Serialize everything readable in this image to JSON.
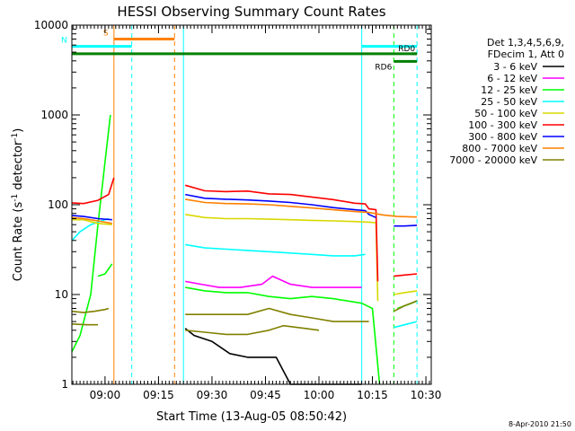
{
  "chart_data": {
    "type": "line",
    "title": "HESSI Observing Summary Count Rates",
    "xlabel": "Start Time (13-Aug-05 08:50:42)",
    "ylabel": "Count Rate (s",
    "ylabel_sup": "-1",
    "ylabel_mid": " detector",
    "ylabel_end": ")",
    "y_scale": "log",
    "ylim": [
      1,
      10000
    ],
    "xlim": [
      "08:50:42",
      "10:31:30"
    ],
    "x_ticks": [
      "09:00",
      "09:15",
      "09:30",
      "09:45",
      "10:00",
      "10:15",
      "10:30"
    ],
    "y_ticks": [
      "1",
      "10",
      "100",
      "1000",
      "10000"
    ],
    "footer_date": "8-Apr-2010 21:50",
    "legend_title": [
      "Det 1,3,4,5,6,9,",
      "FDecim 1, Att 0"
    ],
    "legend_placement": "right",
    "series": [
      {
        "name": "3 - 6 keV",
        "color": "#000000",
        "segments": [
          [
            [
              "09:22:30",
              4.2
            ],
            [
              "09:25",
              3.5
            ],
            [
              "09:30",
              3.0
            ],
            [
              "09:35",
              2.2
            ],
            [
              "09:40",
              2.0
            ],
            [
              "09:45",
              2.0
            ],
            [
              "09:48",
              2.0
            ],
            [
              "09:52",
              1.0
            ],
            [
              "10:00",
              1.0
            ],
            [
              "10:05",
              1.0
            ],
            [
              "10:12",
              1.0
            ]
          ]
        ]
      },
      {
        "name": "6 - 12 keV",
        "color": "#ff00ff",
        "segments": [
          [
            [
              "09:22:30",
              14
            ],
            [
              "09:27",
              13
            ],
            [
              "09:32",
              12
            ],
            [
              "09:38",
              12
            ],
            [
              "09:44",
              13
            ],
            [
              "09:47",
              16
            ],
            [
              "09:52",
              13
            ],
            [
              "09:58",
              12
            ],
            [
              "10:04",
              12
            ],
            [
              "10:08",
              12
            ],
            [
              "10:12",
              12
            ]
          ]
        ]
      },
      {
        "name": "12 - 25 keV",
        "color": "#00ff00",
        "segments": [
          [
            [
              "08:50:42",
              2.3
            ],
            [
              "08:53",
              3.5
            ],
            [
              "08:56",
              10
            ],
            [
              "08:58",
              60
            ],
            [
              "09:00",
              300
            ],
            [
              "09:01:30",
              1000
            ]
          ],
          [
            [
              "08:58",
              16
            ],
            [
              "09:00",
              17
            ],
            [
              "09:02",
              22
            ]
          ],
          [
            [
              "09:22:30",
              12
            ],
            [
              "09:28",
              11
            ],
            [
              "09:34",
              10.5
            ],
            [
              "09:40",
              10.5
            ],
            [
              "09:46",
              9.5
            ],
            [
              "09:52",
              9.0
            ],
            [
              "09:58",
              9.5
            ],
            [
              "10:04",
              9.0
            ],
            [
              "10:12",
              8.0
            ],
            [
              "10:15",
              7.0
            ],
            [
              "10:17",
              1.0
            ]
          ],
          [
            [
              "10:22",
              7.0
            ],
            [
              "10:26",
              8.0
            ],
            [
              "10:27:30",
              8.5
            ]
          ]
        ]
      },
      {
        "name": "25 - 50 keV",
        "color": "#00ffff",
        "segments": [
          [
            [
              "08:50:42",
              40
            ],
            [
              "08:53",
              50
            ],
            [
              "08:56",
              60
            ],
            [
              "08:59",
              66
            ],
            [
              "09:01",
              70
            ]
          ],
          [
            [
              "09:22:30",
              36
            ],
            [
              "09:28",
              33
            ],
            [
              "09:34",
              32
            ],
            [
              "09:40",
              31
            ],
            [
              "09:46",
              30
            ],
            [
              "09:52",
              29
            ],
            [
              "09:58",
              28
            ],
            [
              "10:04",
              27
            ],
            [
              "10:10",
              27
            ],
            [
              "10:13",
              28
            ]
          ],
          [
            [
              "10:21",
              4.3
            ],
            [
              "10:24",
              4.6
            ],
            [
              "10:27:30",
              5.0
            ]
          ]
        ]
      },
      {
        "name": "50 - 100 keV",
        "color": "#d8d800",
        "segments": [
          [
            [
              "08:50:42",
              68
            ],
            [
              "08:54",
              68
            ],
            [
              "08:58",
              62
            ],
            [
              "09:02",
              60
            ]
          ],
          [
            [
              "09:22:30",
              78
            ],
            [
              "09:28",
              72
            ],
            [
              "09:34",
              70
            ],
            [
              "09:40",
              70
            ],
            [
              "09:46",
              69
            ],
            [
              "09:52",
              68
            ],
            [
              "09:58",
              67
            ],
            [
              "10:04",
              66
            ],
            [
              "10:10",
              65
            ],
            [
              "10:14",
              64
            ],
            [
              "10:16",
              63
            ],
            [
              "10:16:30",
              8.5
            ]
          ],
          [
            [
              "10:21",
              10
            ],
            [
              "10:24",
              10.5
            ],
            [
              "10:27:30",
              11
            ]
          ]
        ]
      },
      {
        "name": "100 - 300 keV",
        "color": "#ff0000",
        "segments": [
          [
            [
              "08:50:42",
              105
            ],
            [
              "08:54",
              103
            ],
            [
              "08:58",
              112
            ],
            [
              "09:01",
              130
            ],
            [
              "09:02:30",
              200
            ]
          ],
          [
            [
              "09:22:30",
              165
            ],
            [
              "09:28",
              143
            ],
            [
              "09:34",
              140
            ],
            [
              "09:40",
              142
            ],
            [
              "09:46",
              132
            ],
            [
              "09:52",
              130
            ],
            [
              "09:58",
              122
            ],
            [
              "10:04",
              114
            ],
            [
              "10:10",
              104
            ],
            [
              "10:13",
              102
            ],
            [
              "10:14",
              90
            ],
            [
              "10:16",
              88
            ],
            [
              "10:16:30",
              14
            ]
          ],
          [
            [
              "10:21",
              16
            ],
            [
              "10:24",
              16.5
            ],
            [
              "10:27:30",
              17
            ]
          ]
        ]
      },
      {
        "name": "300 - 800 keV",
        "color": "#0000ff",
        "segments": [
          [
            [
              "08:50:42",
              76
            ],
            [
              "08:54",
              74
            ],
            [
              "08:58",
              70
            ],
            [
              "09:02",
              68
            ]
          ],
          [
            [
              "09:22:30",
              130
            ],
            [
              "09:28",
              118
            ],
            [
              "09:34",
              115
            ],
            [
              "09:40",
              113
            ],
            [
              "09:46",
              110
            ],
            [
              "09:52",
              106
            ],
            [
              "09:58",
              100
            ],
            [
              "10:04",
              93
            ],
            [
              "10:10",
              88
            ],
            [
              "10:13",
              86
            ],
            [
              "10:14",
              78
            ],
            [
              "10:16",
              72
            ]
          ],
          [
            [
              "10:21",
              58
            ],
            [
              "10:24",
              58
            ],
            [
              "10:27:30",
              59
            ]
          ]
        ]
      },
      {
        "name": "800 - 7000 keV",
        "color": "#ff8000",
        "segments": [
          [
            [
              "08:50:42",
              72
            ],
            [
              "08:54",
              70
            ],
            [
              "08:58",
              66
            ],
            [
              "09:02",
              62
            ]
          ],
          [
            [
              "09:22:30",
              115
            ],
            [
              "09:28",
              106
            ],
            [
              "09:34",
              103
            ],
            [
              "09:40",
              102
            ],
            [
              "09:46",
              100
            ],
            [
              "09:52",
              96
            ],
            [
              "09:58",
              92
            ],
            [
              "10:04",
              88
            ],
            [
              "10:10",
              84
            ],
            [
              "10:14",
              82
            ],
            [
              "10:18",
              77
            ],
            [
              "10:22",
              74
            ],
            [
              "10:27:30",
              73
            ]
          ]
        ]
      },
      {
        "name": "7000 - 20000 keV",
        "color": "#808000",
        "segments": [
          [
            [
              "08:50:42",
              6.5
            ],
            [
              "08:54",
              6.3
            ],
            [
              "08:57",
              6.5
            ],
            [
              "09:00",
              6.8
            ],
            [
              "09:01",
              7.0
            ]
          ],
          [
            [
              "08:50:42",
              4.7
            ],
            [
              "08:55",
              4.6
            ],
            [
              "08:58",
              4.6
            ]
          ],
          [
            [
              "09:22:30",
              6.0
            ],
            [
              "09:28",
              6.0
            ],
            [
              "09:34",
              6.0
            ],
            [
              "09:40",
              6.0
            ],
            [
              "09:46",
              7.0
            ],
            [
              "09:52",
              6.0
            ],
            [
              "09:58",
              5.5
            ],
            [
              "10:04",
              5.0
            ],
            [
              "10:10",
              5.0
            ],
            [
              "10:14",
              5.0
            ]
          ],
          [
            [
              "09:22:30",
              4.0
            ],
            [
              "09:28",
              3.8
            ],
            [
              "09:34",
              3.6
            ],
            [
              "09:40",
              3.6
            ],
            [
              "09:46",
              4.0
            ],
            [
              "09:50",
              4.5
            ],
            [
              "09:56",
              4.2
            ],
            [
              "10:00",
              4.0
            ]
          ],
          [
            [
              "10:21",
              6.5
            ],
            [
              "10:24",
              7.5
            ],
            [
              "10:27:30",
              8.5
            ]
          ]
        ]
      }
    ],
    "flag_bars": [
      {
        "label": "S",
        "color": "#ff8000",
        "y": 7000,
        "x": [
          "09:02:30",
          "09:19:30"
        ]
      },
      {
        "label": "N",
        "color": "#00ffff",
        "y": 5800,
        "x": [
          "08:50:42",
          "09:07:30"
        ]
      },
      {
        "label": "",
        "color": "#00ffff",
        "y": 5800,
        "x": [
          "10:12:00",
          "10:27:30"
        ]
      },
      {
        "label": "",
        "color": "#008000",
        "y": 4800,
        "x": [
          "08:50:42",
          "10:27:30"
        ]
      },
      {
        "label": "RD0",
        "color": "#008000",
        "y": 4800,
        "x": [
          "10:26:00",
          "10:27:30"
        ]
      },
      {
        "label": "RD6",
        "color": "#008000",
        "y": 3950,
        "x": [
          "10:21:00",
          "10:27:30"
        ]
      }
    ],
    "vertical_markers": [
      {
        "x": "08:50:42",
        "color": "#00ffff",
        "style": "solid"
      },
      {
        "x": "09:02:30",
        "color": "#ff8000",
        "style": "solid"
      },
      {
        "x": "09:07:30",
        "color": "#00ffff",
        "style": "dashed"
      },
      {
        "x": "09:19:30",
        "color": "#ff8000",
        "style": "dashed"
      },
      {
        "x": "09:22:00",
        "color": "#00ffff",
        "style": "solid"
      },
      {
        "x": "10:12:00",
        "color": "#00ffff",
        "style": "solid"
      },
      {
        "x": "10:21:00",
        "color": "#00ff00",
        "style": "dashed"
      },
      {
        "x": "10:27:30",
        "color": "#00ffff",
        "style": "dashed"
      }
    ]
  }
}
